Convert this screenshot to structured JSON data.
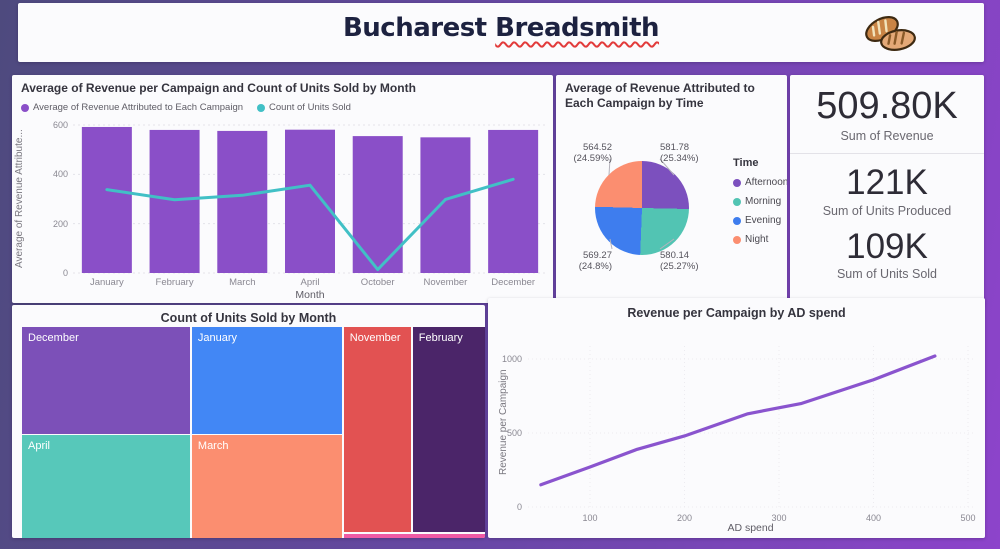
{
  "header": {
    "title_word1": "Bucharest",
    "title_word2": "Breadsmith",
    "bread_icon": "bread-loaves-icon"
  },
  "kpis": [
    {
      "value": "509.80K",
      "label": "Sum of Revenue"
    },
    {
      "value": "121K",
      "label": "Sum of Units Produced"
    },
    {
      "value": "109K",
      "label": "Sum of Units Sold"
    }
  ],
  "chart_data": [
    {
      "id": "combo",
      "type": "bar",
      "title": "Average of Revenue per Campaign and Count of Units Sold by Month",
      "categories": [
        "January",
        "February",
        "March",
        "April",
        "October",
        "November",
        "December"
      ],
      "series": [
        {
          "name": "Average of Revenue Attributed to Each Campaign",
          "type": "bar",
          "color": "#8a4fc8",
          "values": [
            592,
            580,
            576,
            581,
            555,
            550,
            580
          ]
        },
        {
          "name": "Count of Units Sold",
          "type": "line",
          "color": "#41c0c6",
          "values": [
            338,
            297,
            315,
            356,
            14,
            298,
            380
          ]
        }
      ],
      "xlabel": "Month",
      "ylabel": "Average of Revenue Attribute...",
      "ylim": [
        0,
        600
      ],
      "yticks": [
        "0",
        "200",
        "400",
        "600"
      ],
      "grid": "dashed-horizontal",
      "legend_position": "top-left"
    },
    {
      "id": "pie",
      "type": "pie",
      "title": "Average of Revenue Attributed to Each Campaign by Time",
      "legend_title": "Time",
      "legend_position": "right",
      "slices": [
        {
          "label": "Afternoon",
          "value": "581.78",
          "pct": 25.34,
          "pct_label": "(25.34%)",
          "color": "#7c50be"
        },
        {
          "label": "Morning",
          "value": "580.14",
          "pct": 25.27,
          "pct_label": "(25.27%)",
          "color": "#52c4b3"
        },
        {
          "label": "Evening",
          "value": "569.27",
          "pct": 24.8,
          "pct_label": "(24.8%)",
          "color": "#3e7dee"
        },
        {
          "label": "Night",
          "value": "564.52",
          "pct": 24.59,
          "pct_label": "(24.59%)",
          "color": "#fb8e70"
        }
      ]
    },
    {
      "id": "treemap",
      "type": "treemap",
      "title": "Count of Units Sold by Month",
      "tiles": [
        {
          "label": "December",
          "color": "#7c50b8",
          "x": 0,
          "y": 0,
          "w": 36.3,
          "h": 50.5
        },
        {
          "label": "January",
          "color": "#4287f5",
          "x": 36.7,
          "y": 0,
          "w": 32.4,
          "h": 50.5
        },
        {
          "label": "April",
          "color": "#57c8ba",
          "x": 0,
          "y": 51.4,
          "w": 36.3,
          "h": 48.6
        },
        {
          "label": "March",
          "color": "#fb8e70",
          "x": 36.7,
          "y": 51.4,
          "w": 32.4,
          "h": 48.6
        },
        {
          "label": "November",
          "color": "#e25252",
          "x": 69.5,
          "y": 0,
          "w": 14.5,
          "h": 97.2
        },
        {
          "label": "February",
          "color": "#4b2569",
          "x": 84.4,
          "y": 0,
          "w": 15.6,
          "h": 97.2
        },
        {
          "label": "",
          "color": "#ef5ba5",
          "x": 69.5,
          "y": 98.1,
          "w": 30.5,
          "h": 1.9
        }
      ]
    },
    {
      "id": "adspend",
      "type": "line",
      "title": "Revenue per Campaign by AD spend",
      "xlabel": "AD spend",
      "ylabel": "Revenue per Campaign",
      "color": "#8a54ce",
      "x": [
        48,
        100,
        150,
        200,
        267,
        324,
        400,
        465
      ],
      "y": [
        150,
        270,
        390,
        480,
        630,
        700,
        860,
        1020
      ],
      "xlim": [
        0,
        500
      ],
      "ylim": [
        0,
        1150
      ],
      "xticks": [
        100,
        200,
        300,
        400,
        500
      ],
      "yticks": [
        0,
        500,
        1000
      ],
      "grid": "dotted"
    }
  ],
  "colors": {
    "page_gradient_start": "#4e4a7e",
    "page_gradient_end": "#8d44cb",
    "card_bg": "#fbfbfd",
    "title_navy": "#1d2240",
    "squiggle_red": "#e23b3b",
    "axis_text": "#8a8892",
    "gridline": "#e3e2e8"
  }
}
